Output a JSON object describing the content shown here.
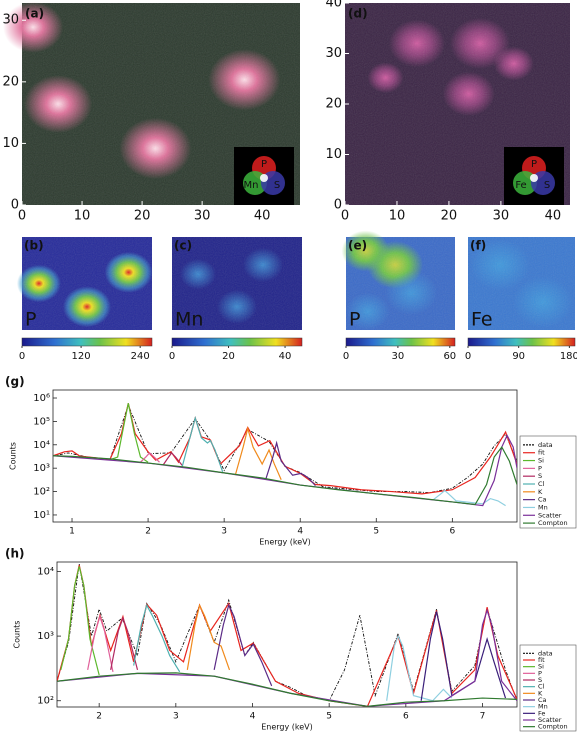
{
  "chart_data": [
    {
      "type": "image",
      "label": "(a)",
      "xlim": [
        0,
        46.3
      ],
      "ylim": [
        0,
        32.8
      ],
      "xticks": [
        0,
        10,
        20,
        30,
        40
      ],
      "yticks": [
        0,
        10,
        20,
        30
      ],
      "channels": [
        {
          "name": "P",
          "color": "#e02020"
        },
        {
          "name": "Mn",
          "color": "#3cb43c"
        },
        {
          "name": "S",
          "color": "#3a3aa8"
        }
      ]
    },
    {
      "type": "image",
      "label": "(d)",
      "xlim": [
        0,
        43.3
      ],
      "ylim": [
        0,
        40
      ],
      "xticks": [
        0,
        10,
        20,
        30,
        40
      ],
      "yticks": [
        0,
        10,
        20,
        30,
        40
      ],
      "channels": [
        {
          "name": "P",
          "color": "#e02020"
        },
        {
          "name": "Fe",
          "color": "#3cb43c"
        },
        {
          "name": "S",
          "color": "#3a3aa8"
        }
      ]
    },
    {
      "type": "map",
      "label": "(b)",
      "element": "P",
      "clim": [
        0,
        264
      ],
      "cticks": [
        0,
        120,
        240
      ]
    },
    {
      "type": "map",
      "label": "(c)",
      "element": "Mn",
      "clim": [
        0,
        46
      ],
      "cticks": [
        0,
        20,
        40
      ]
    },
    {
      "type": "map",
      "label": "(e)",
      "element": "P",
      "clim": [
        0,
        63
      ],
      "cticks": [
        0,
        30,
        60
      ]
    },
    {
      "type": "map",
      "label": "(f)",
      "element": "Fe",
      "clim": [
        0,
        190
      ],
      "cticks": [
        0,
        90,
        180
      ]
    },
    {
      "type": "line",
      "label": "(g)",
      "xlabel": "Energy (keV)",
      "ylabel": "Counts",
      "log_y": true,
      "xlim": [
        0.75,
        6.85
      ],
      "ylim": [
        5,
        2200000
      ],
      "xticks": [
        1,
        2,
        3,
        4,
        5,
        6
      ],
      "yticks": [
        {
          "value": 10,
          "label": "10¹"
        },
        {
          "value": 100,
          "label": "10²"
        },
        {
          "value": 1000,
          "label": "10³"
        },
        {
          "value": 10000,
          "label": "10⁴"
        },
        {
          "value": 100000,
          "label": "10⁵"
        },
        {
          "value": 1000000,
          "label": "10⁶"
        }
      ],
      "series": [
        {
          "name": "data",
          "color": "#111111",
          "x": [
            0.75,
            0.95,
            1.2,
            1.5,
            1.74,
            2.0,
            2.3,
            2.62,
            2.82,
            3.0,
            3.31,
            3.59,
            3.8,
            4.0,
            4.3,
            4.6,
            5.0,
            5.4,
            5.7,
            6.0,
            6.2,
            6.4,
            6.55,
            6.7,
            6.85
          ],
          "values": [
            3300,
            4500,
            3000,
            2400,
            500000,
            4200,
            4500,
            130000,
            15000,
            800,
            45000,
            14000,
            1200,
            650,
            160,
            130,
            100,
            100,
            90,
            140,
            400,
            1500,
            9000,
            28000,
            2000
          ]
        },
        {
          "name": "fit",
          "color": "#e8251f",
          "x": [
            0.75,
            0.9,
            1.0,
            1.1,
            1.5,
            1.65,
            1.74,
            1.83,
            2.0,
            2.1,
            2.3,
            2.4,
            2.55,
            2.62,
            2.7,
            2.82,
            2.95,
            3.2,
            3.31,
            3.45,
            3.6,
            3.8,
            4.0,
            4.2,
            4.4,
            4.8,
            5.2,
            5.6,
            6.0,
            6.3,
            6.5,
            6.7,
            6.85
          ],
          "values": [
            3400,
            5000,
            5500,
            3300,
            2400,
            30000,
            600000,
            30000,
            5000,
            2200,
            5000,
            1800,
            20000,
            140000,
            22000,
            16000,
            1500,
            9000,
            55000,
            9000,
            15000,
            1200,
            600,
            200,
            180,
            120,
            100,
            80,
            120,
            400,
            3000,
            35000,
            1500
          ]
        },
        {
          "name": "Si",
          "color": "#5cb82c",
          "x": [
            1.5,
            1.6,
            1.66,
            1.74,
            1.82,
            1.9,
            2.0
          ],
          "values": [
            2300,
            3000,
            30000,
            600000,
            30000,
            3000,
            1800
          ]
        },
        {
          "name": "P",
          "color": "#e0609a",
          "x": [
            1.9,
            1.97,
            2.02,
            2.08,
            2.15
          ],
          "values": [
            1800,
            3000,
            4500,
            3000,
            1800
          ]
        },
        {
          "name": "S",
          "color": "#b02860",
          "x": [
            2.2,
            2.27,
            2.31,
            2.36,
            2.45
          ],
          "values": [
            1400,
            3000,
            4500,
            3000,
            1300
          ]
        },
        {
          "name": "Cl",
          "color": "#4fb0b0",
          "x": [
            2.45,
            2.55,
            2.62,
            2.7,
            2.78,
            2.82,
            2.88,
            2.98
          ],
          "values": [
            1200,
            20000,
            140000,
            20000,
            12000,
            15000,
            6000,
            700
          ]
        },
        {
          "name": "K",
          "color": "#f08a1c",
          "x": [
            3.15,
            3.25,
            3.31,
            3.38,
            3.5,
            3.59,
            3.66,
            3.75
          ],
          "values": [
            550,
            8000,
            50000,
            8000,
            1500,
            6000,
            1500,
            320
          ]
        },
        {
          "name": "Ca",
          "color": "#5b2a86",
          "x": [
            3.55,
            3.64,
            3.69,
            3.75,
            3.9,
            4.01,
            4.1,
            4.2
          ],
          "values": [
            360,
            3000,
            12000,
            2000,
            500,
            600,
            400,
            180
          ]
        },
        {
          "name": "Mn",
          "color": "#8ecfe0",
          "x": [
            5.75,
            5.85,
            5.9,
            5.95,
            6.05,
            6.4,
            6.5,
            6.6,
            6.7
          ],
          "values": [
            45,
            80,
            110,
            80,
            40,
            30,
            50,
            40,
            25
          ]
        },
        {
          "name": "Scatter",
          "color": "#7a2f9a",
          "x": [
            0.75,
            2,
            3,
            4,
            5,
            6,
            6.4,
            6.55,
            6.65,
            6.72,
            6.8,
            6.85
          ],
          "values": [
            3400,
            1650,
            630,
            190,
            80,
            36,
            25,
            300,
            8000,
            25000,
            8000,
            1000
          ]
        },
        {
          "name": "Compton",
          "color": "#2f7a2f",
          "x": [
            0.75,
            1,
            1.5,
            2,
            2.5,
            3,
            3.5,
            4,
            4.5,
            5,
            5.5,
            6,
            6.3,
            6.45,
            6.55,
            6.65,
            6.75,
            6.85
          ],
          "values": [
            3400,
            3200,
            2500,
            1650,
            1100,
            630,
            380,
            190,
            120,
            80,
            55,
            36,
            28,
            200,
            3000,
            8000,
            2000,
            200
          ]
        }
      ]
    },
    {
      "type": "line",
      "label": "(h)",
      "xlabel": "Energy (keV)",
      "ylabel": "Counts",
      "log_y": true,
      "xlim": [
        1.45,
        7.45
      ],
      "ylim": [
        80,
        14000
      ],
      "xticks": [
        2,
        3,
        4,
        5,
        6,
        7
      ],
      "yticks": [
        {
          "value": 100,
          "label": "10²"
        },
        {
          "value": 1000,
          "label": "10³"
        },
        {
          "value": 10000,
          "label": "10⁴"
        }
      ],
      "series": [
        {
          "name": "data",
          "color": "#111111",
          "x": [
            1.45,
            1.6,
            1.74,
            1.9,
            2.0,
            2.1,
            2.3,
            2.5,
            2.62,
            2.8,
            3.0,
            3.31,
            3.5,
            3.69,
            3.9,
            4.01,
            4.3,
            4.5,
            4.7,
            5.0,
            5.2,
            5.4,
            5.6,
            5.9,
            6.1,
            6.4,
            6.6,
            6.9,
            7.06,
            7.3,
            7.45
          ],
          "values": [
            200,
            800,
            13000,
            1000,
            2600,
            1200,
            1900,
            500,
            3200,
            1500,
            400,
            3000,
            800,
            3600,
            500,
            800,
            200,
            160,
            120,
            100,
            300,
            2100,
            120,
            1100,
            140,
            2600,
            140,
            350,
            2700,
            300,
            100
          ]
        },
        {
          "name": "fit",
          "color": "#e8251f",
          "x": [
            1.45,
            1.6,
            1.68,
            1.74,
            1.8,
            1.9,
            2.01,
            2.15,
            2.31,
            2.45,
            2.62,
            2.75,
            2.92,
            3.1,
            3.31,
            3.45,
            3.69,
            3.85,
            4.01,
            4.3,
            4.6,
            5.0,
            5.5,
            5.9,
            6.1,
            6.4,
            6.6,
            6.9,
            7.06,
            7.2,
            7.45
          ],
          "values": [
            200,
            900,
            6000,
            12500,
            6000,
            700,
            2100,
            600,
            2000,
            400,
            3100,
            2100,
            600,
            400,
            3000,
            1200,
            3200,
            600,
            780,
            200,
            130,
            100,
            82,
            1000,
            130,
            2500,
            130,
            300,
            2800,
            500,
            105
          ]
        },
        {
          "name": "Si",
          "color": "#5cb82c",
          "x": [
            1.5,
            1.6,
            1.68,
            1.74,
            1.8,
            1.88,
            2.0
          ],
          "values": [
            300,
            900,
            6000,
            12000,
            6000,
            900,
            250
          ]
        },
        {
          "name": "P",
          "color": "#e0609a",
          "x": [
            1.85,
            1.95,
            2.01,
            2.07,
            2.18
          ],
          "values": [
            300,
            1200,
            2000,
            1200,
            280
          ]
        },
        {
          "name": "S",
          "color": "#b02860",
          "x": [
            2.15,
            2.25,
            2.31,
            2.37,
            2.5
          ],
          "values": [
            300,
            1200,
            1900,
            1200,
            300
          ]
        },
        {
          "name": "Cl",
          "color": "#4fb0b0",
          "x": [
            2.45,
            2.55,
            2.62,
            2.7,
            2.82,
            2.92,
            3.05
          ],
          "values": [
            350,
            1500,
            3000,
            2000,
            1000,
            500,
            280
          ]
        },
        {
          "name": "K",
          "color": "#f08a1c",
          "x": [
            3.15,
            3.25,
            3.31,
            3.38,
            3.5,
            3.59,
            3.7
          ],
          "values": [
            300,
            1500,
            3000,
            2000,
            800,
            700,
            300
          ]
        },
        {
          "name": "Ca",
          "color": "#5b2a86",
          "x": [
            3.5,
            3.62,
            3.69,
            3.76,
            3.9,
            4.01,
            4.12,
            4.25
          ],
          "values": [
            300,
            1500,
            3000,
            2000,
            500,
            750,
            400,
            170
          ]
        },
        {
          "name": "Mn",
          "color": "#8ecfe0",
          "x": [
            5.75,
            5.85,
            5.9,
            5.96,
            6.1,
            6.35,
            6.49,
            6.6
          ],
          "values": [
            100,
            700,
            1000,
            700,
            120,
            100,
            150,
            110
          ]
        },
        {
          "name": "Fe",
          "color": "#3a1f7a",
          "x": [
            6.2,
            6.32,
            6.4,
            6.48,
            6.6,
            6.9,
            7.06,
            7.15,
            7.3
          ],
          "values": [
            100,
            900,
            2400,
            900,
            120,
            200,
            900,
            400,
            110
          ]
        },
        {
          "name": "Scatter",
          "color": "#7a2f9a",
          "x": [
            1.45,
            2.5,
            3.5,
            4.5,
            5.5,
            6.5,
            6.9,
            7.0,
            7.06,
            7.12,
            7.25,
            7.45
          ],
          "values": [
            200,
            265,
            240,
            130,
            82,
            100,
            200,
            1500,
            2500,
            1500,
            200,
            100
          ]
        },
        {
          "name": "Compton",
          "color": "#2f7a2f",
          "x": [
            1.45,
            2,
            2.5,
            3,
            3.5,
            4,
            4.5,
            5,
            5.5,
            6,
            6.5,
            7,
            7.45
          ],
          "values": [
            200,
            240,
            265,
            270,
            240,
            180,
            130,
            100,
            82,
            95,
            100,
            110,
            105
          ]
        }
      ]
    }
  ]
}
